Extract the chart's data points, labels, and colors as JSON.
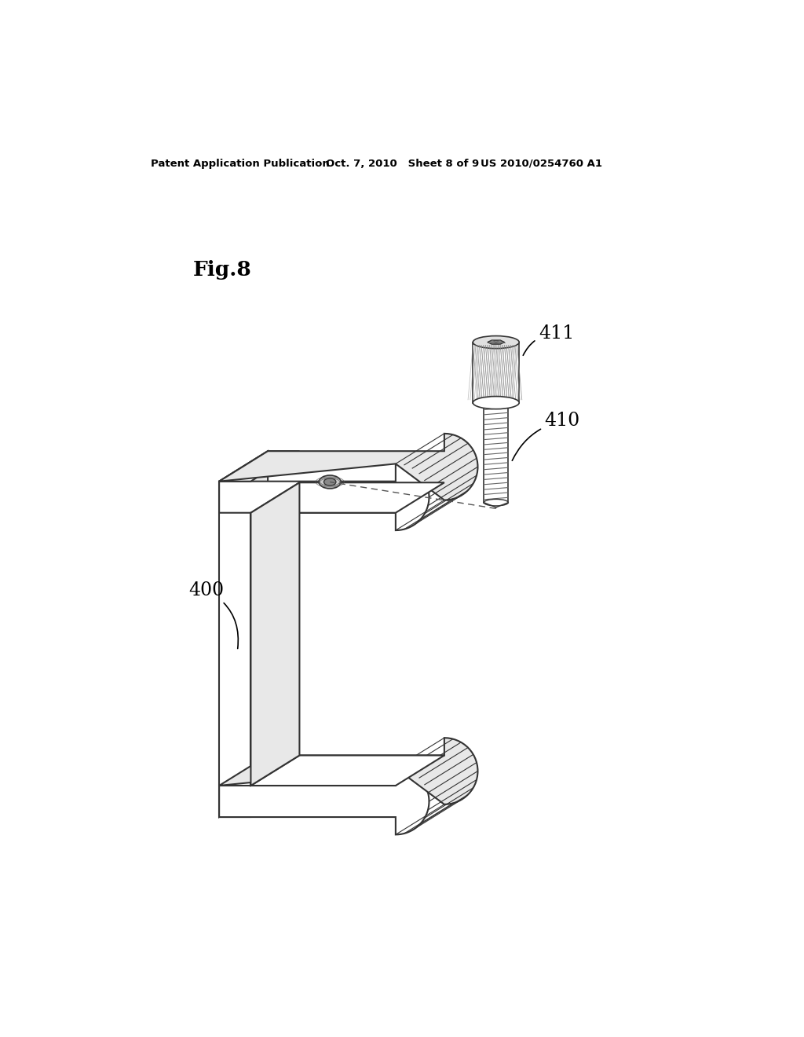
{
  "bg_color": "#ffffff",
  "header_left": "Patent Application Publication",
  "header_mid": "Oct. 7, 2010   Sheet 8 of 9",
  "header_right": "US 2010/0254760 A1",
  "fig_label": "Fig.8",
  "label_400": "400",
  "label_410": "410",
  "label_411": "411",
  "line_color": "#000000",
  "edge_color": "#333333",
  "dashed_color": "#555555",
  "fill_color": "#ffffff",
  "light_gray": "#e8e8e8",
  "knurl_color": "#888888"
}
